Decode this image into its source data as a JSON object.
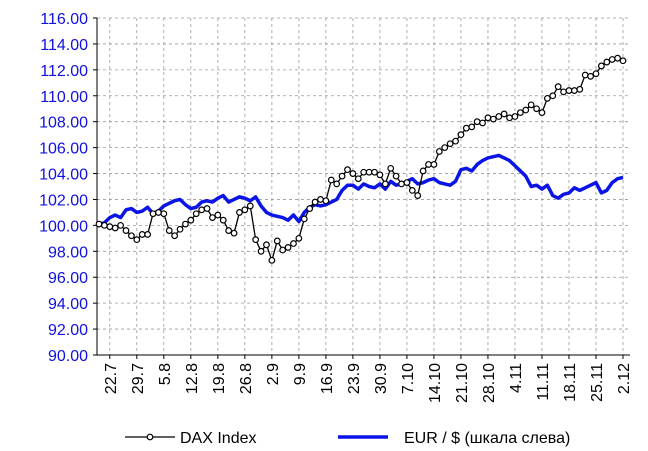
{
  "chart_data": {
    "type": "line",
    "categories": [
      null,
      null,
      "22.7",
      null,
      null,
      null,
      null,
      "29.7",
      null,
      null,
      null,
      null,
      "5.8",
      null,
      null,
      null,
      null,
      "12.8",
      null,
      null,
      null,
      null,
      "19.8",
      null,
      null,
      null,
      null,
      "26.8",
      null,
      null,
      null,
      null,
      "2.9",
      null,
      null,
      null,
      null,
      "9.9",
      null,
      null,
      null,
      null,
      "16.9",
      null,
      null,
      null,
      null,
      "23.9",
      null,
      null,
      null,
      null,
      "30.9",
      null,
      null,
      null,
      null,
      "7.10",
      null,
      null,
      null,
      null,
      "14.10",
      null,
      null,
      null,
      null,
      "21.10",
      null,
      null,
      null,
      null,
      "28.10",
      null,
      null,
      null,
      null,
      "4.11",
      null,
      null,
      null,
      null,
      "11.11",
      null,
      null,
      null,
      null,
      "18.11",
      null,
      null,
      null,
      null,
      "25.11",
      null,
      null,
      null,
      null,
      "2.12"
    ],
    "series": [
      {
        "name": "DAX Index",
        "color": "#000000",
        "marker": true,
        "values": [
          100.1,
          100.0,
          99.9,
          99.8,
          100.0,
          99.6,
          99.2,
          98.9,
          99.3,
          99.3,
          100.9,
          101.0,
          100.9,
          99.6,
          99.2,
          99.7,
          100.1,
          100.4,
          100.9,
          101.2,
          101.3,
          100.6,
          100.8,
          100.4,
          99.6,
          99.4,
          101.0,
          101.2,
          101.5,
          98.9,
          98.0,
          98.5,
          97.3,
          98.8,
          98.1,
          98.3,
          98.6,
          99.0,
          100.5,
          101.3,
          101.8,
          102.0,
          101.9,
          103.5,
          103.2,
          103.8,
          104.3,
          104.0,
          103.6,
          104.1,
          104.1,
          104.1,
          103.9,
          103.2,
          104.4,
          103.8,
          103.2,
          103.3,
          102.7,
          102.3,
          104.2,
          104.7,
          104.7,
          105.7,
          106.0,
          106.3,
          106.5,
          107.0,
          107.5,
          107.6,
          108.0,
          107.9,
          108.3,
          108.2,
          108.4,
          108.6,
          108.3,
          108.4,
          108.7,
          108.9,
          109.3,
          109.0,
          108.7,
          109.8,
          110.0,
          110.7,
          110.3,
          110.4,
          110.4,
          110.5,
          111.6,
          111.5,
          111.7,
          112.3,
          112.6,
          112.8,
          112.9,
          112.7
        ]
      },
      {
        "name": "EUR / $ (шкала слева)",
        "color": "#0a14e6",
        "marker": false,
        "values": [
          100.1,
          100.2,
          100.6,
          100.8,
          100.6,
          101.2,
          101.3,
          101.0,
          101.1,
          101.4,
          100.9,
          101.1,
          101.5,
          101.7,
          101.9,
          102.0,
          101.6,
          101.3,
          101.4,
          101.8,
          101.9,
          101.8,
          102.1,
          102.3,
          101.8,
          102.0,
          102.2,
          102.1,
          101.9,
          102.2,
          101.5,
          101.0,
          100.8,
          100.7,
          100.6,
          100.4,
          100.8,
          100.3,
          101.0,
          101.4,
          101.6,
          101.5,
          101.6,
          101.8,
          102.0,
          102.7,
          103.1,
          103.1,
          102.8,
          103.2,
          103.0,
          102.9,
          103.2,
          102.8,
          103.4,
          103.1,
          103.2,
          103.4,
          103.6,
          103.2,
          103.3,
          103.5,
          103.6,
          103.3,
          103.2,
          103.1,
          103.4,
          104.3,
          104.4,
          104.2,
          104.7,
          105.0,
          105.2,
          105.3,
          105.4,
          105.2,
          105.0,
          104.6,
          104.2,
          103.8,
          103.0,
          103.1,
          102.8,
          103.1,
          102.3,
          102.1,
          102.4,
          102.5,
          102.9,
          102.7,
          102.9,
          103.1,
          103.3,
          102.5,
          102.7,
          103.3,
          103.6,
          103.7
        ]
      }
    ],
    "ylim": [
      90,
      116
    ],
    "yticks": [
      {
        "value": 90,
        "label": "90.00"
      },
      {
        "value": 92,
        "label": "92.00"
      },
      {
        "value": 94,
        "label": "94.00"
      },
      {
        "value": 96,
        "label": "96.00"
      },
      {
        "value": 98,
        "label": "98.00"
      },
      {
        "value": 100,
        "label": "100.00"
      },
      {
        "value": 102,
        "label": "102.00"
      },
      {
        "value": 104,
        "label": "104.00"
      },
      {
        "value": 106,
        "label": "106.00"
      },
      {
        "value": 108,
        "label": "108.00"
      },
      {
        "value": 110,
        "label": "110.00"
      },
      {
        "value": 112,
        "label": "112.00"
      },
      {
        "value": 114,
        "label": "114.00"
      },
      {
        "value": 116,
        "label": "116.00"
      }
    ],
    "grid": true,
    "legend": "bottom"
  }
}
